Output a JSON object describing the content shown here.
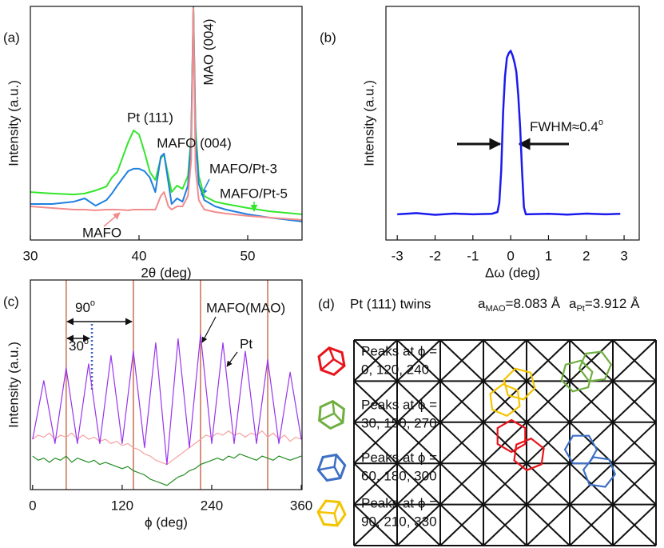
{
  "chart_data": [
    {
      "type": "line",
      "panel_label": "(a)",
      "x_label": "2θ (deg)",
      "y_label": "Intensity (a.u.)",
      "x": [
        30,
        32,
        34,
        35,
        36,
        37,
        37.5,
        38,
        39,
        39.5,
        40,
        40.5,
        41,
        41.5,
        42,
        42.3,
        42.7,
        43,
        43.5,
        44,
        44.5,
        44.8,
        45,
        45.2,
        45.5,
        46,
        47,
        48,
        50,
        52,
        55
      ],
      "xlim": [
        30,
        55
      ],
      "xticks": [
        30,
        40,
        50
      ],
      "ylim": [
        0,
        100
      ],
      "series": [
        {
          "name": "MAFO/Pt-5",
          "color": "#33e62a",
          "values": [
            20.5,
            19.9,
            19.5,
            19.9,
            21.2,
            22.9,
            26.7,
            29.1,
            41.8,
            46.9,
            45.2,
            37.7,
            29.1,
            25.7,
            34.9,
            36.6,
            27.4,
            20.5,
            23.3,
            21.9,
            27.4,
            44.5,
            100,
            47.9,
            27.4,
            18.8,
            16.4,
            15.4,
            13.7,
            12.3,
            11.0
          ]
        },
        {
          "name": "MAFO/Pt-3",
          "color": "#1f80e0",
          "values": [
            15.4,
            15.4,
            16.4,
            17.8,
            14.7,
            17.1,
            19.9,
            23.3,
            29.5,
            30.5,
            30.5,
            29.5,
            26.7,
            20.5,
            35.6,
            37.0,
            24.7,
            15.4,
            17.8,
            16.4,
            23.3,
            42.8,
            100,
            44.5,
            24.0,
            17.1,
            14.4,
            13.0,
            11.0,
            9.6,
            7.9
          ]
        },
        {
          "name": "MAFO",
          "color": "#f28c8c",
          "values": [
            14.4,
            13.7,
            13.0,
            13.0,
            12.7,
            13.0,
            13.0,
            13.0,
            12.7,
            13.0,
            13.0,
            13.0,
            13.0,
            13.0,
            18.8,
            20.5,
            14.4,
            13.0,
            14.4,
            14.4,
            18.8,
            34.2,
            99.3,
            30.8,
            17.1,
            13.0,
            12.0,
            11.3,
            10.3,
            9.6,
            8.6
          ]
        }
      ],
      "annotations": [
        "Pt (111)",
        "MAFO (004)",
        "MAO (004)"
      ]
    },
    {
      "type": "line",
      "panel_label": "(b)",
      "x_label": "Δω (deg)",
      "y_label": "Intensity (a.u.)",
      "x": [
        -3,
        -2.5,
        -2,
        -1.5,
        -1,
        -0.5,
        -0.35,
        -0.3,
        -0.25,
        -0.2,
        -0.15,
        -0.1,
        -0.05,
        0,
        0.05,
        0.1,
        0.15,
        0.2,
        0.25,
        0.3,
        0.35,
        0.4,
        1,
        1.5,
        2,
        2.5,
        2.9
      ],
      "xlim": [
        -3.3,
        3.4
      ],
      "xticks": [
        -3,
        -2,
        -1,
        0,
        1,
        2,
        3
      ],
      "ylim": [
        0,
        100
      ],
      "series": [
        {
          "color": "#1a1aee",
          "values": [
            11,
            11.5,
            10.8,
            11.3,
            11,
            11.2,
            12,
            16,
            30,
            55,
            70,
            78,
            80,
            81,
            79,
            76,
            72,
            62,
            48,
            30,
            14,
            11,
            11.2,
            10.9,
            11.3,
            11,
            11.2
          ]
        }
      ],
      "annotation": "FWHM≈0.4",
      "annotation_sup": "o"
    },
    {
      "type": "line",
      "panel_label": "(c)",
      "x_label": "ϕ (deg)",
      "y_label": "Intensity (a.u.)",
      "x": [
        0,
        7.5,
        15,
        22.5,
        30,
        37.5,
        45,
        52.5,
        60,
        67.5,
        75,
        82.5,
        90,
        97.5,
        105,
        112.5,
        120,
        127.5,
        135,
        142.5,
        150,
        157.5,
        165,
        172.5,
        180,
        187.5,
        195,
        202.5,
        210,
        217.5,
        225,
        232.5,
        240,
        247.5,
        255,
        262.5,
        270,
        277.5,
        285,
        292.5,
        300,
        307.5,
        315,
        322.5,
        330,
        337.5,
        345,
        352.5,
        360
      ],
      "xlim": [
        -3,
        361
      ],
      "xticks": [
        0,
        120,
        240,
        360
      ],
      "ylim": [
        0,
        100
      ],
      "series": [
        {
          "color": "#f6a0a0",
          "values": [
            24,
            26,
            25,
            27,
            24,
            26,
            25,
            27,
            24,
            26,
            24,
            25,
            23,
            24,
            22,
            23,
            21,
            22,
            20,
            19,
            17,
            16,
            14,
            13,
            12,
            14,
            16,
            18,
            20,
            22,
            24,
            26,
            25,
            27,
            26,
            28,
            26,
            27,
            25,
            27,
            26,
            28,
            25,
            27,
            24,
            26,
            23,
            25,
            24
          ]
        },
        {
          "color": "#228b22",
          "values": [
            16,
            14,
            15,
            13,
            15,
            14,
            16,
            13,
            15,
            14,
            13,
            14,
            12,
            13,
            12,
            11,
            10,
            11,
            9,
            8,
            7,
            5,
            4,
            3,
            2,
            4,
            6,
            7,
            9,
            10,
            12,
            13,
            14,
            15,
            14,
            16,
            15,
            17,
            16,
            15,
            14,
            16,
            15,
            14,
            16,
            15,
            14,
            15,
            16
          ]
        },
        {
          "color": "#9933ee",
          "values": [
            24,
            38,
            52,
            37,
            22,
            40,
            58,
            40,
            22,
            41,
            60,
            41,
            22,
            43,
            64,
            43,
            22,
            44,
            66,
            43,
            20,
            45,
            70,
            41,
            12,
            42,
            72,
            46,
            20,
            47,
            74,
            48,
            22,
            46,
            70,
            46,
            22,
            44,
            66,
            44,
            22,
            42,
            62,
            42,
            22,
            39,
            56,
            40,
            24
          ]
        }
      ],
      "vlines": [
        45,
        135,
        225,
        315
      ],
      "vline_color": "#c87050",
      "annotations": [
        {
          "text": "90",
          "sup": "o"
        },
        {
          "text": "30",
          "sup": "o"
        },
        "MAFO(MAO)",
        "Pt"
      ]
    }
  ],
  "diagram": {
    "label": "(d)",
    "title": "Pt (111) twins",
    "lattice": [
      {
        "symbol": "a",
        "sub": "MAO",
        "value": "=8.083 Å"
      },
      {
        "symbol": "a",
        "sub": "Pt",
        "value": "=3.912 Å"
      }
    ],
    "twins": [
      {
        "line1": "Peaks at ϕ =",
        "line2": "0, 120, 240",
        "color": "#e8141c"
      },
      {
        "line1": "Peaks at ϕ =",
        "line2": "30, 150, 270",
        "color": "#6fae3f"
      },
      {
        "line1": "Peaks at ϕ =",
        "line2": "60, 180, 300",
        "color": "#3d6fc4"
      },
      {
        "line1": "Peaks at ϕ =",
        "line2": "90, 210, 330",
        "color": "#f5c400"
      }
    ]
  }
}
